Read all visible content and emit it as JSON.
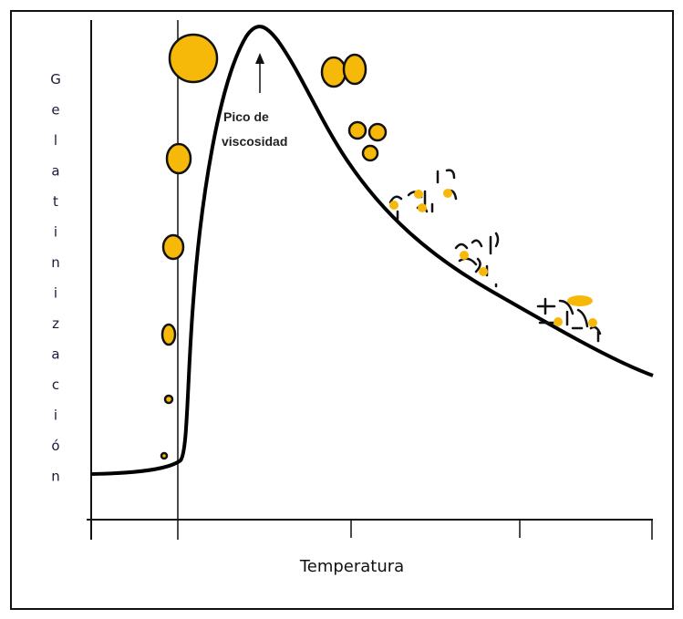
{
  "y_axis_label": "Gelatinización",
  "x_axis_label": "Temperatura",
  "annotation": {
    "lines": [
      "Pico de",
      "viscosidad"
    ]
  }
}
